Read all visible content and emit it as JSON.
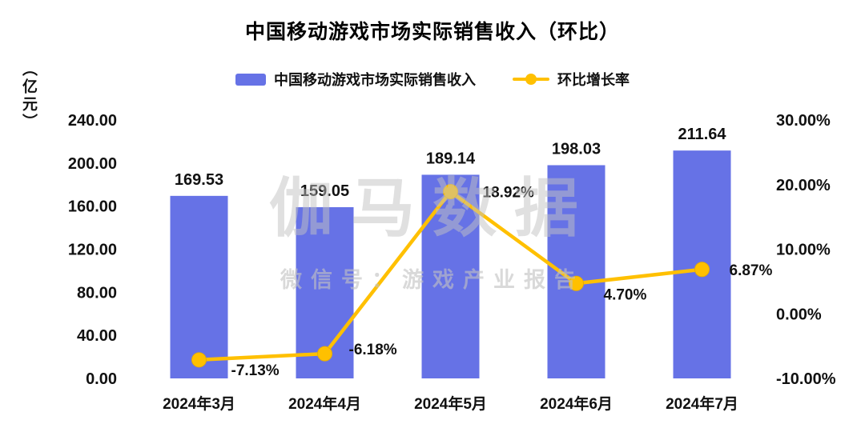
{
  "title": "中国移动游戏市场实际销售收入（环比）",
  "unit_label": "（亿元）",
  "legend": [
    {
      "label": "中国移动游戏市场实际销售收入"
    },
    {
      "label": "环比增长率"
    }
  ],
  "watermark": {
    "line1": "伽马数据",
    "line2": "微信号：游戏产业报告"
  },
  "colors": {
    "bar": "#6672E6",
    "line": "#FFC000",
    "text": "#111111"
  },
  "chart_data": {
    "type": "bar",
    "subtype": "bar+line combo, dual axis",
    "title": "中国移动游戏市场实际销售收入（环比）",
    "categories": [
      "2024年3月",
      "2024年4月",
      "2024年5月",
      "2024年6月",
      "2024年7月"
    ],
    "series": [
      {
        "name": "中国移动游戏市场实际销售收入",
        "type": "bar",
        "axis": "left",
        "unit": "亿元",
        "values": [
          169.53,
          159.05,
          189.14,
          198.03,
          211.64
        ],
        "labels": [
          "169.53",
          "159.05",
          "189.14",
          "198.03",
          "211.64"
        ]
      },
      {
        "name": "环比增长率",
        "type": "line",
        "axis": "right",
        "unit": "%",
        "values": [
          -7.13,
          -6.18,
          18.92,
          4.7,
          6.87
        ],
        "labels": [
          "-7.13%",
          "-6.18%",
          "18.92%",
          "4.70%",
          "6.87%"
        ]
      }
    ],
    "left_axis": {
      "label": "（亿元）",
      "min": 0,
      "max": 240,
      "tick_step": 40,
      "ticks": [
        "0.00",
        "40.00",
        "80.00",
        "120.00",
        "160.00",
        "200.00",
        "240.00"
      ]
    },
    "right_axis": {
      "min": -10,
      "max": 30,
      "tick_step": 10,
      "ticks": [
        "-10.00%",
        "0.00%",
        "10.00%",
        "20.00%",
        "30.00%"
      ]
    },
    "legend_position": "top",
    "grid": false
  }
}
